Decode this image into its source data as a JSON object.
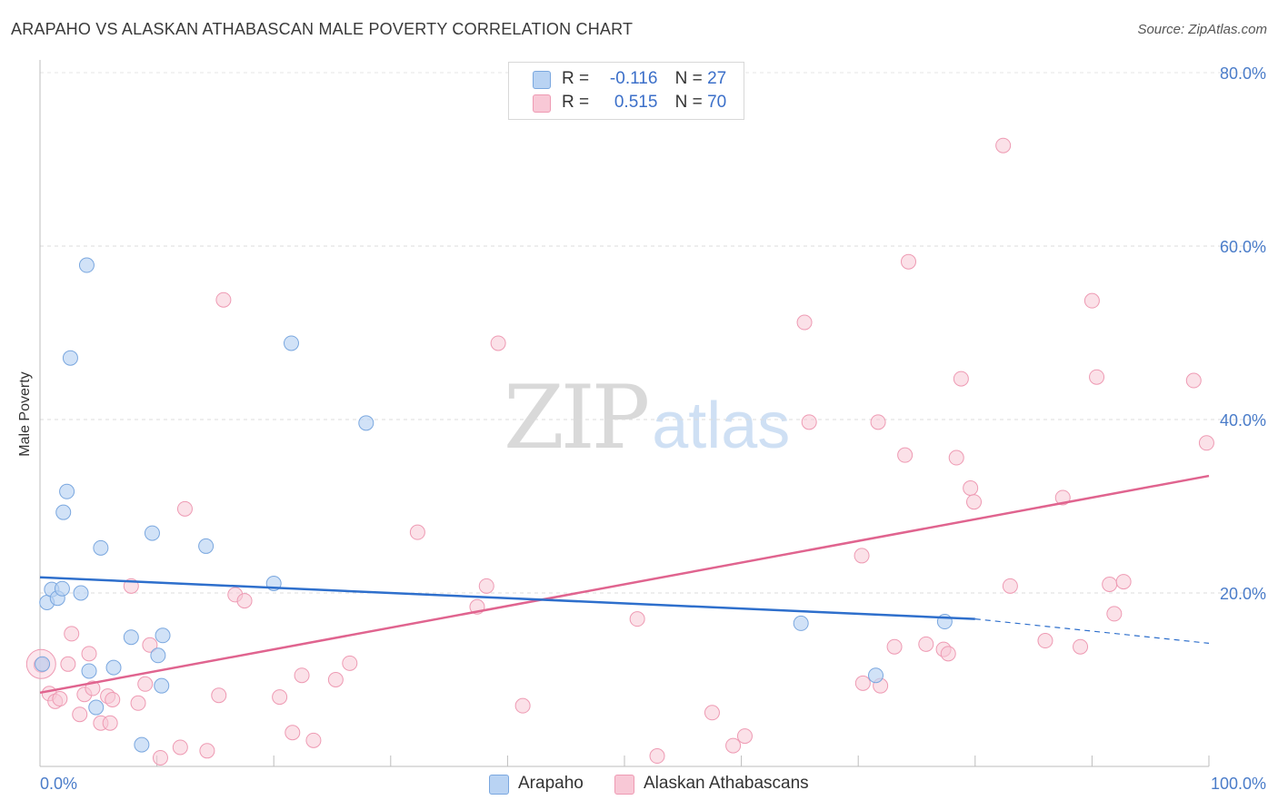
{
  "header": {
    "title": "ARAPAHO VS ALASKAN ATHABASCAN MALE POVERTY CORRELATION CHART",
    "source": "Source: ZipAtlas.com"
  },
  "watermark": {
    "zip": "ZIP",
    "atlas": "atlas"
  },
  "legend": {
    "rows": [
      {
        "r_label": "R =",
        "r_value": "-0.116",
        "n_label": "N =",
        "n_value": "27"
      },
      {
        "r_label": "R =",
        "r_value": "0.515",
        "n_label": "N =",
        "n_value": "70"
      }
    ]
  },
  "bottom_legend": {
    "items": [
      "Arapaho",
      "Alaskan Athabascans"
    ]
  },
  "colors": {
    "arapaho_fill": "#b9d3f3",
    "arapaho_stroke": "#7aa7df",
    "arapaho_line": "#2e6fcc",
    "athabascan_fill": "#f8c8d6",
    "athabascan_stroke": "#ee9ab3",
    "athabascan_line": "#e0648f"
  },
  "chart_data": {
    "type": "scatter",
    "title": "ARAPAHO VS ALASKAN ATHABASCAN MALE POVERTY CORRELATION CHART",
    "xlabel": "",
    "ylabel": "Male Poverty",
    "xlim": [
      0,
      100
    ],
    "ylim": [
      0,
      80
    ],
    "x_ticks": [
      "0.0%",
      "100.0%"
    ],
    "y_ticks": [
      "20.0%",
      "40.0%",
      "60.0%",
      "80.0%"
    ],
    "grid": true,
    "legend_position": "top-center",
    "series": [
      {
        "name": "Arapaho",
        "r": -0.116,
        "n": 27,
        "trend": {
          "x": [
            0,
            80
          ],
          "y": [
            21.8,
            17.0
          ]
        },
        "trend_dashed": {
          "x": [
            80,
            100
          ],
          "y": [
            17.0,
            14.2
          ]
        },
        "points": [
          [
            0.2,
            11.8
          ],
          [
            0.6,
            18.9
          ],
          [
            1.0,
            20.4
          ],
          [
            1.5,
            19.4
          ],
          [
            1.9,
            20.5
          ],
          [
            2.0,
            29.3
          ],
          [
            2.3,
            31.7
          ],
          [
            2.6,
            47.1
          ],
          [
            3.5,
            20.0
          ],
          [
            4.0,
            57.8
          ],
          [
            4.2,
            11.0
          ],
          [
            4.8,
            6.8
          ],
          [
            5.2,
            25.2
          ],
          [
            6.3,
            11.4
          ],
          [
            7.8,
            14.9
          ],
          [
            8.7,
            2.5
          ],
          [
            9.6,
            26.9
          ],
          [
            10.1,
            12.8
          ],
          [
            10.4,
            9.3
          ],
          [
            10.5,
            15.1
          ],
          [
            14.2,
            25.4
          ],
          [
            20.0,
            21.1
          ],
          [
            21.5,
            48.8
          ],
          [
            27.9,
            39.6
          ],
          [
            65.1,
            16.5
          ],
          [
            71.5,
            10.5
          ],
          [
            77.4,
            16.7
          ]
        ]
      },
      {
        "name": "Alaskan Athabascans",
        "r": 0.515,
        "n": 70,
        "trend": {
          "x": [
            0,
            100
          ],
          "y": [
            8.5,
            33.5
          ]
        },
        "points": [
          [
            0.1,
            11.7
          ],
          [
            0.8,
            8.4
          ],
          [
            1.3,
            7.5
          ],
          [
            1.7,
            7.8
          ],
          [
            2.4,
            11.8
          ],
          [
            2.7,
            15.3
          ],
          [
            3.4,
            6.0
          ],
          [
            3.8,
            8.3
          ],
          [
            4.2,
            13.0
          ],
          [
            4.5,
            9.0
          ],
          [
            5.2,
            5.0
          ],
          [
            5.8,
            8.1
          ],
          [
            6.0,
            5.0
          ],
          [
            6.2,
            7.7
          ],
          [
            7.8,
            20.8
          ],
          [
            8.4,
            7.3
          ],
          [
            9.0,
            9.5
          ],
          [
            9.4,
            14.0
          ],
          [
            10.3,
            1.0
          ],
          [
            12.0,
            2.2
          ],
          [
            12.4,
            29.7
          ],
          [
            14.3,
            1.8
          ],
          [
            15.3,
            8.2
          ],
          [
            15.7,
            53.8
          ],
          [
            16.7,
            19.8
          ],
          [
            17.5,
            19.1
          ],
          [
            20.5,
            8.0
          ],
          [
            21.6,
            3.9
          ],
          [
            22.4,
            10.5
          ],
          [
            23.4,
            3.0
          ],
          [
            25.3,
            10.0
          ],
          [
            26.5,
            11.9
          ],
          [
            32.3,
            27.0
          ],
          [
            37.4,
            18.4
          ],
          [
            38.2,
            20.8
          ],
          [
            39.2,
            48.8
          ],
          [
            41.3,
            7.0
          ],
          [
            51.1,
            17.0
          ],
          [
            52.8,
            1.2
          ],
          [
            57.5,
            6.2
          ],
          [
            59.3,
            2.4
          ],
          [
            60.3,
            3.5
          ],
          [
            65.4,
            51.2
          ],
          [
            65.8,
            39.7
          ],
          [
            70.4,
            9.6
          ],
          [
            70.3,
            24.3
          ],
          [
            71.7,
            39.7
          ],
          [
            71.9,
            9.3
          ],
          [
            73.1,
            13.8
          ],
          [
            74.0,
            35.9
          ],
          [
            74.3,
            58.2
          ],
          [
            75.8,
            14.1
          ],
          [
            77.3,
            13.5
          ],
          [
            77.7,
            13.0
          ],
          [
            78.4,
            35.6
          ],
          [
            78.8,
            44.7
          ],
          [
            79.6,
            32.1
          ],
          [
            79.9,
            30.5
          ],
          [
            82.4,
            71.6
          ],
          [
            83.0,
            20.8
          ],
          [
            86.0,
            14.5
          ],
          [
            87.5,
            31.0
          ],
          [
            89.0,
            13.8
          ],
          [
            90.0,
            53.7
          ],
          [
            90.4,
            44.9
          ],
          [
            91.5,
            21.0
          ],
          [
            91.9,
            17.6
          ],
          [
            92.7,
            21.3
          ],
          [
            98.7,
            44.5
          ],
          [
            99.8,
            37.3
          ]
        ]
      }
    ]
  }
}
